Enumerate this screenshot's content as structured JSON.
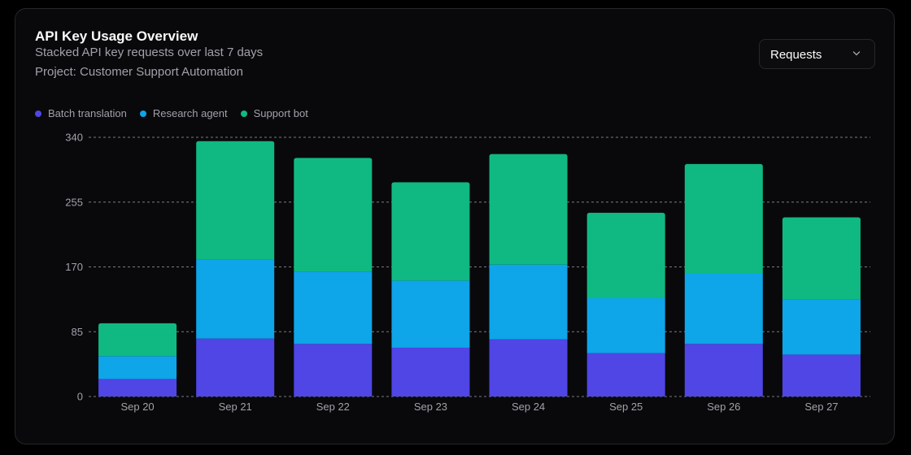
{
  "header": {
    "title": "API Key Usage Overview",
    "subtitle": "Stacked API key requests over last 7 days",
    "project": "Project: Customer Support Automation"
  },
  "metric_select": {
    "selected": "Requests",
    "icon": "chevron-down-icon"
  },
  "colors": {
    "Batch translation": "#4f46e5",
    "Research agent": "#0ea5e9",
    "Support bot": "#10b981",
    "grid": "#9ca3af",
    "axis_text": "#a1a1aa",
    "background": "#09090b"
  },
  "chart_data": {
    "type": "bar",
    "stacked": true,
    "categories": [
      "Sep 20",
      "Sep 21",
      "Sep 22",
      "Sep 23",
      "Sep 24",
      "Sep 25",
      "Sep 26",
      "Sep 27"
    ],
    "series": [
      {
        "name": "Batch translation",
        "values": [
          23,
          76,
          69,
          64,
          75,
          57,
          69,
          55
        ]
      },
      {
        "name": "Research agent",
        "values": [
          30,
          104,
          95,
          88,
          98,
          72,
          92,
          72
        ]
      },
      {
        "name": "Support bot",
        "values": [
          43,
          155,
          149,
          129,
          145,
          112,
          144,
          108
        ]
      }
    ],
    "y_ticks": [
      0,
      85,
      170,
      255,
      340
    ],
    "ylim": [
      0,
      340
    ],
    "grid": true,
    "legend_position": "top-left"
  }
}
